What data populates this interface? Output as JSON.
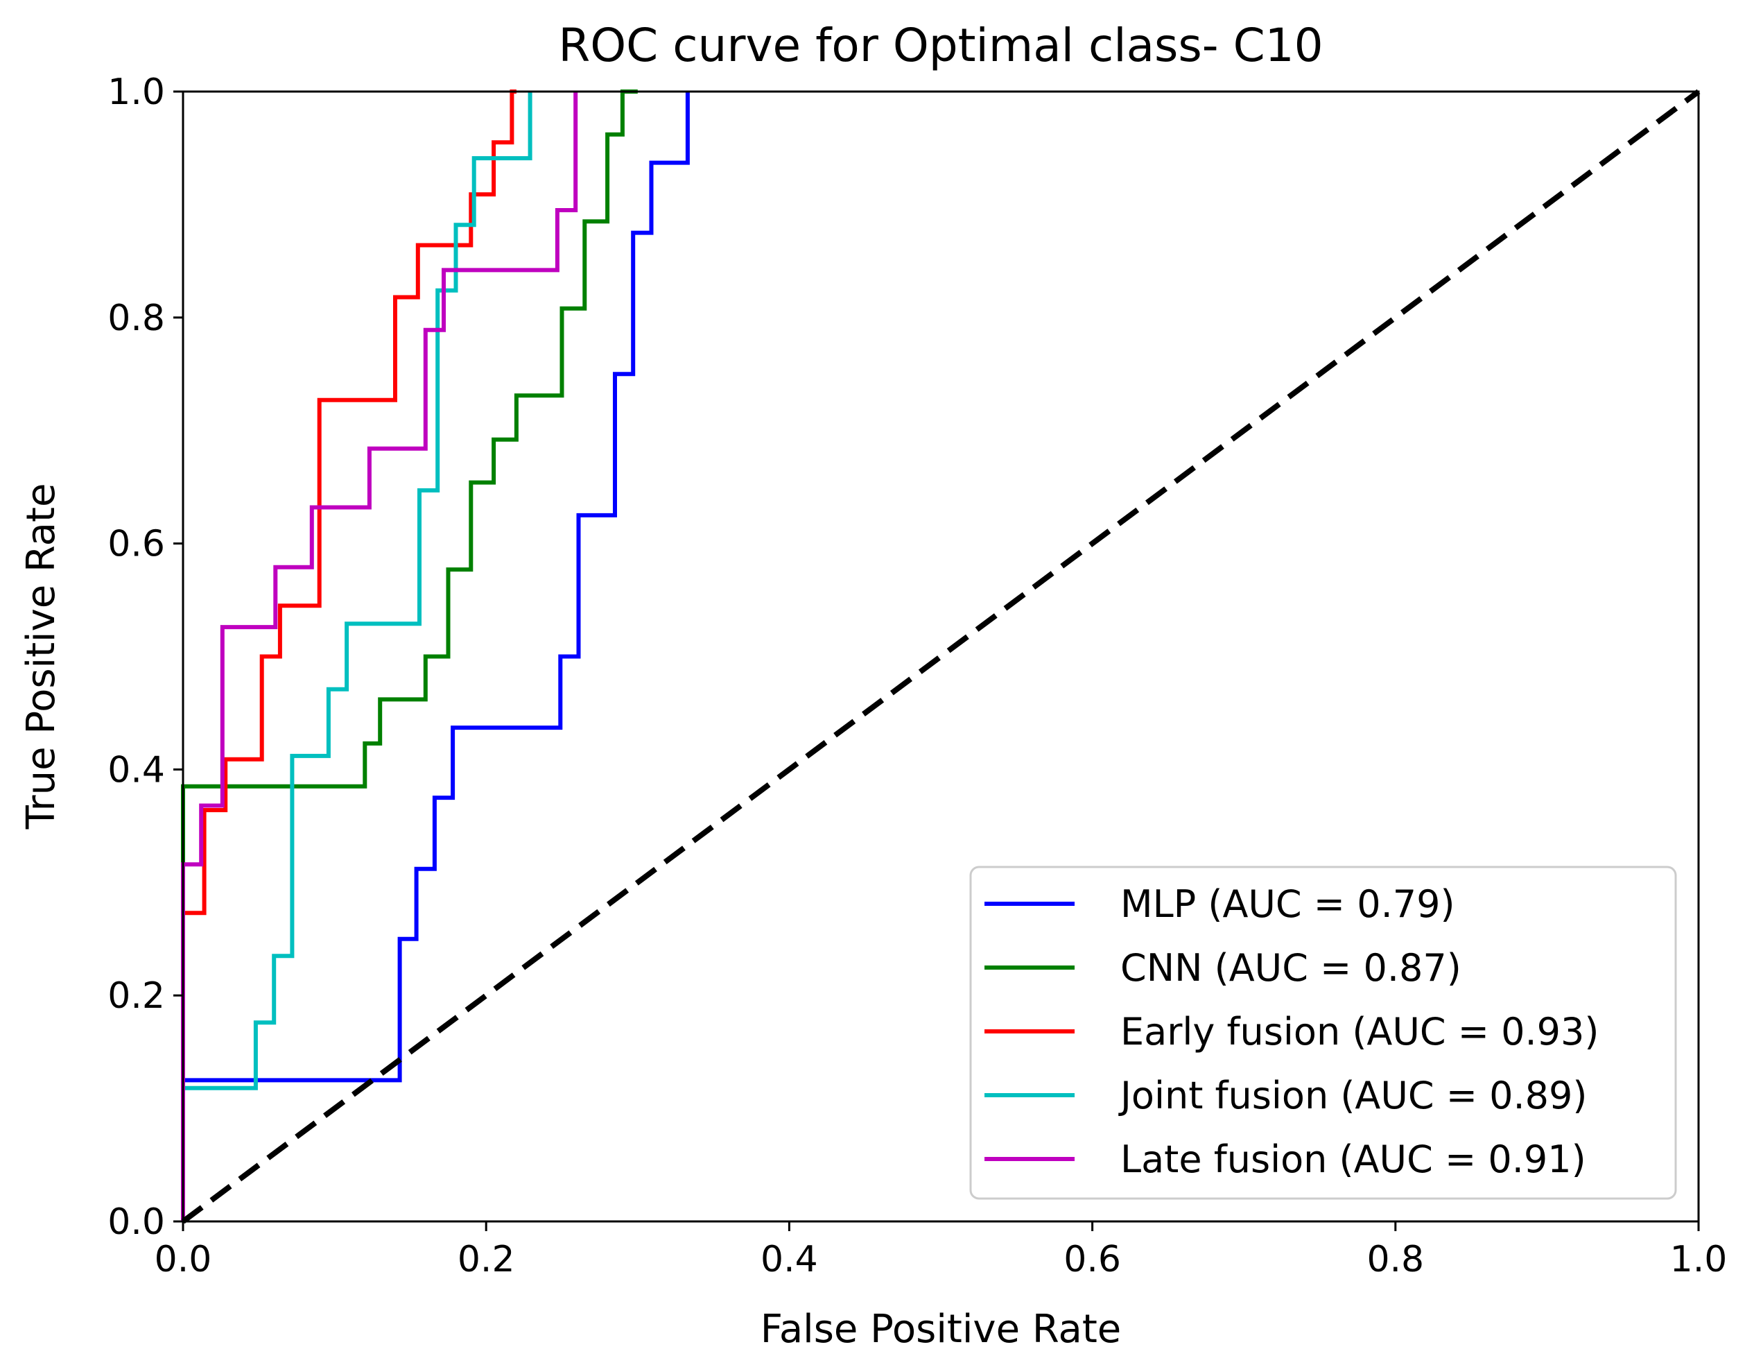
{
  "chart_data": {
    "type": "line",
    "title": "ROC curve for Optimal class- C10",
    "xlabel": "False Positive Rate",
    "ylabel": "True Positive Rate",
    "xlim": [
      0.0,
      1.0
    ],
    "ylim": [
      0.0,
      1.0
    ],
    "xticks": [
      "0.0",
      "0.2",
      "0.4",
      "0.6",
      "0.8",
      "1.0"
    ],
    "yticks": [
      "0.0",
      "0.2",
      "0.4",
      "0.6",
      "0.8",
      "1.0"
    ],
    "grid": false,
    "legend_position": "lower-right",
    "series": [
      {
        "name": "MLP (AUC = 0.79)",
        "color": "#0000ff",
        "points": [
          [
            0,
            0
          ],
          [
            0,
            0.125
          ],
          [
            0.143,
            0.125
          ],
          [
            0.143,
            0.25
          ],
          [
            0.154,
            0.25
          ],
          [
            0.154,
            0.312
          ],
          [
            0.166,
            0.312
          ],
          [
            0.166,
            0.375
          ],
          [
            0.178,
            0.375
          ],
          [
            0.178,
            0.437
          ],
          [
            0.249,
            0.437
          ],
          [
            0.249,
            0.5
          ],
          [
            0.261,
            0.5
          ],
          [
            0.261,
            0.625
          ],
          [
            0.285,
            0.625
          ],
          [
            0.285,
            0.75
          ],
          [
            0.297,
            0.75
          ],
          [
            0.297,
            0.875
          ],
          [
            0.309,
            0.875
          ],
          [
            0.309,
            0.937
          ],
          [
            0.333,
            0.937
          ],
          [
            0.333,
            1.0
          ]
        ]
      },
      {
        "name": "CNN (AUC = 0.87)",
        "color": "#008000",
        "points": [
          [
            0,
            0
          ],
          [
            0,
            0.385
          ],
          [
            0.12,
            0.385
          ],
          [
            0.12,
            0.423
          ],
          [
            0.13,
            0.423
          ],
          [
            0.13,
            0.462
          ],
          [
            0.16,
            0.462
          ],
          [
            0.16,
            0.5
          ],
          [
            0.175,
            0.5
          ],
          [
            0.175,
            0.577
          ],
          [
            0.19,
            0.577
          ],
          [
            0.19,
            0.654
          ],
          [
            0.205,
            0.654
          ],
          [
            0.205,
            0.692
          ],
          [
            0.22,
            0.692
          ],
          [
            0.22,
            0.731
          ],
          [
            0.25,
            0.731
          ],
          [
            0.25,
            0.808
          ],
          [
            0.265,
            0.808
          ],
          [
            0.265,
            0.885
          ],
          [
            0.28,
            0.885
          ],
          [
            0.28,
            0.962
          ],
          [
            0.29,
            0.962
          ],
          [
            0.29,
            1.0
          ],
          [
            0.3,
            1.0
          ]
        ]
      },
      {
        "name": "Early fusion (AUC = 0.93)",
        "color": "#ff0000",
        "points": [
          [
            0,
            0
          ],
          [
            0,
            0.273
          ],
          [
            0.014,
            0.273
          ],
          [
            0.014,
            0.364
          ],
          [
            0.028,
            0.364
          ],
          [
            0.028,
            0.409
          ],
          [
            0.052,
            0.409
          ],
          [
            0.052,
            0.5
          ],
          [
            0.064,
            0.5
          ],
          [
            0.064,
            0.545
          ],
          [
            0.09,
            0.545
          ],
          [
            0.09,
            0.727
          ],
          [
            0.14,
            0.727
          ],
          [
            0.14,
            0.818
          ],
          [
            0.155,
            0.818
          ],
          [
            0.155,
            0.864
          ],
          [
            0.19,
            0.864
          ],
          [
            0.19,
            0.909
          ],
          [
            0.205,
            0.909
          ],
          [
            0.205,
            0.955
          ],
          [
            0.217,
            0.955
          ],
          [
            0.217,
            1.0
          ],
          [
            0.22,
            1.0
          ]
        ]
      },
      {
        "name": "Joint fusion (AUC = 0.89)",
        "color": "#00bfbf",
        "points": [
          [
            0,
            0
          ],
          [
            0,
            0.118
          ],
          [
            0.048,
            0.118
          ],
          [
            0.048,
            0.176
          ],
          [
            0.06,
            0.176
          ],
          [
            0.06,
            0.235
          ],
          [
            0.072,
            0.235
          ],
          [
            0.072,
            0.412
          ],
          [
            0.096,
            0.412
          ],
          [
            0.096,
            0.471
          ],
          [
            0.108,
            0.471
          ],
          [
            0.108,
            0.529
          ],
          [
            0.156,
            0.529
          ],
          [
            0.156,
            0.647
          ],
          [
            0.168,
            0.647
          ],
          [
            0.168,
            0.824
          ],
          [
            0.18,
            0.824
          ],
          [
            0.18,
            0.882
          ],
          [
            0.192,
            0.882
          ],
          [
            0.192,
            0.941
          ],
          [
            0.229,
            0.941
          ],
          [
            0.229,
            1.0
          ]
        ]
      },
      {
        "name": "Late fusion (AUC = 0.91)",
        "color": "#bf00bf",
        "points": [
          [
            0,
            0
          ],
          [
            0,
            0.316
          ],
          [
            0.012,
            0.316
          ],
          [
            0.012,
            0.368
          ],
          [
            0.026,
            0.368
          ],
          [
            0.026,
            0.526
          ],
          [
            0.061,
            0.526
          ],
          [
            0.061,
            0.579
          ],
          [
            0.085,
            0.579
          ],
          [
            0.085,
            0.632
          ],
          [
            0.123,
            0.632
          ],
          [
            0.123,
            0.684
          ],
          [
            0.16,
            0.684
          ],
          [
            0.16,
            0.789
          ],
          [
            0.172,
            0.789
          ],
          [
            0.172,
            0.842
          ],
          [
            0.247,
            0.842
          ],
          [
            0.247,
            0.895
          ],
          [
            0.259,
            0.895
          ],
          [
            0.259,
            1.0
          ]
        ]
      }
    ],
    "reference_line": {
      "style": "dashed",
      "color": "#000000",
      "points": [
        [
          0,
          0
        ],
        [
          1,
          1
        ]
      ]
    }
  }
}
